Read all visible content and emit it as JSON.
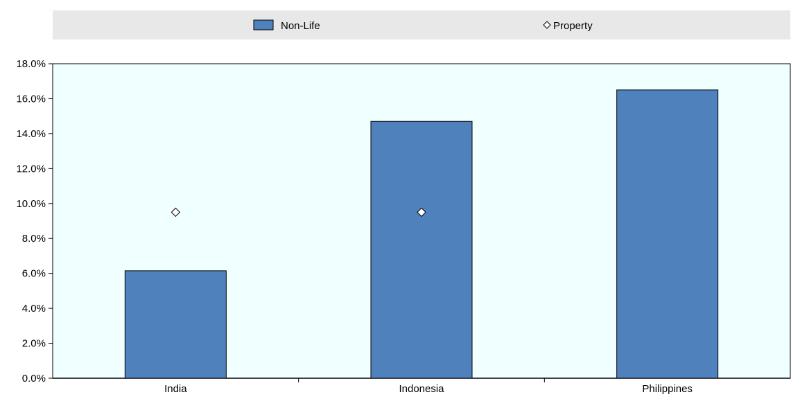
{
  "chart_data": {
    "type": "bar",
    "categories": [
      "India",
      "Indonesia",
      "Philippines"
    ],
    "series": [
      {
        "name": "Non-Life",
        "kind": "bar",
        "color": "#4f81bd",
        "values": [
          6.15,
          14.7,
          16.5
        ]
      },
      {
        "name": "Property",
        "kind": "marker",
        "marker": "diamond",
        "color": "#ffffff",
        "values": [
          9.5,
          9.5,
          null
        ]
      }
    ],
    "ylim": [
      0,
      18
    ],
    "yticks": [
      0,
      2,
      4,
      6,
      8,
      10,
      12,
      14,
      16,
      18
    ],
    "ytick_labels": [
      "0.0%",
      "2.0%",
      "4.0%",
      "6.0%",
      "8.0%",
      "10.0%",
      "12.0%",
      "14.0%",
      "16.0%",
      "18.0%"
    ],
    "grid": false,
    "legend_position": "top",
    "colors": {
      "plot_background": "#f0ffff",
      "legend_background": "#e8e8e8",
      "bar": "#4f81bd",
      "axis": "#000000"
    }
  }
}
